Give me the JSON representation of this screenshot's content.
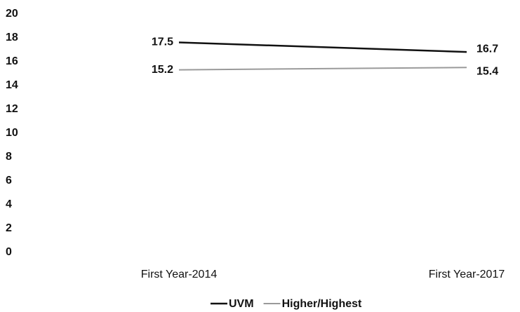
{
  "chart_data": {
    "type": "line",
    "categories": [
      "First Year-2014",
      "First Year-2017"
    ],
    "series": [
      {
        "name": "UVM",
        "color": "#111111",
        "values": [
          17.5,
          16.7
        ]
      },
      {
        "name": "Higher/Highest",
        "color": "#9a9a9a",
        "values": [
          15.2,
          15.4
        ]
      }
    ],
    "ylim": [
      0,
      20
    ],
    "yticks": [
      0,
      2,
      4,
      6,
      8,
      10,
      12,
      14,
      16,
      18,
      20
    ],
    "grid": false,
    "legend": "bottom"
  }
}
